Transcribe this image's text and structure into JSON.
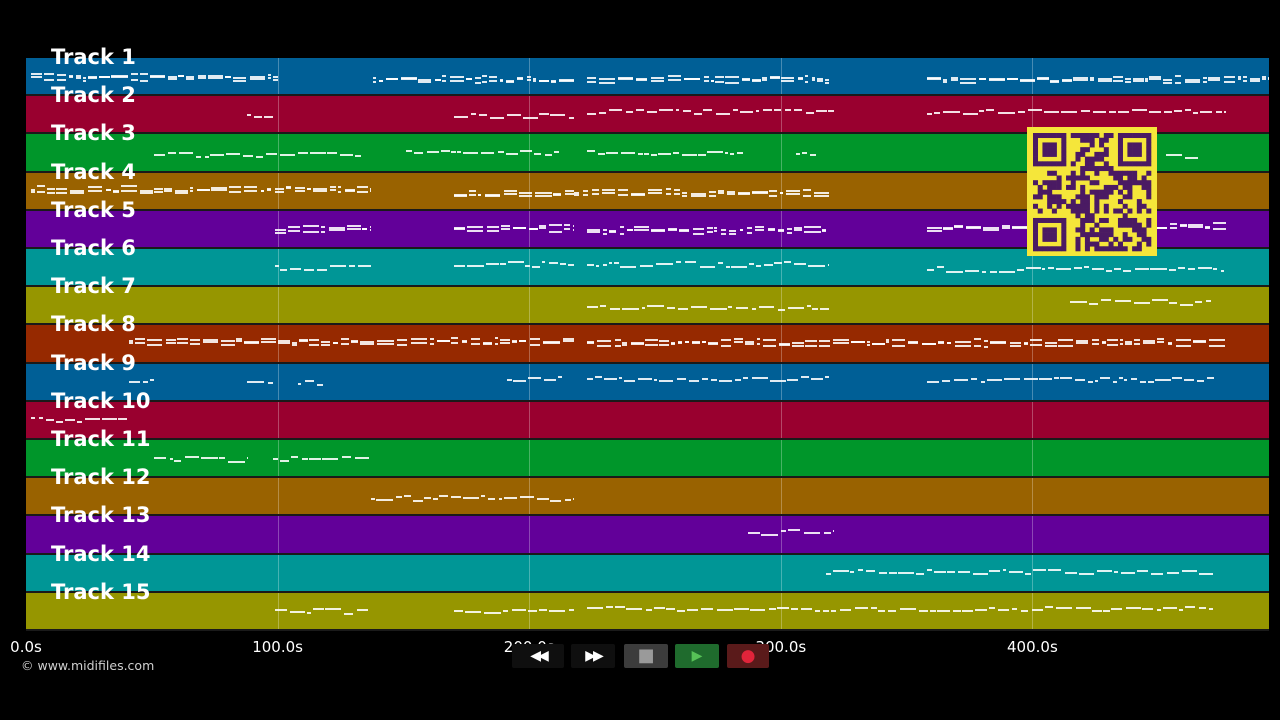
{
  "app": {
    "copyright": "© www.midifiles.com"
  },
  "timeline": {
    "max_seconds": 500,
    "ticks": [
      {
        "value": 0,
        "label": "0.0s"
      },
      {
        "value": 100,
        "label": "100.0s"
      },
      {
        "value": 200,
        "label": "200.0s"
      },
      {
        "value": 300,
        "label": "300.0s"
      },
      {
        "value": 400,
        "label": "400.0s"
      }
    ]
  },
  "tracks": [
    {
      "label": "Track 1",
      "color": "#005f96",
      "segments": [
        [
          2,
          100
        ],
        [
          138,
          218
        ],
        [
          223,
          319
        ],
        [
          358,
          495
        ]
      ]
    },
    {
      "label": "Track 2",
      "color": "#99002f",
      "segments": [
        [
          88,
          98
        ],
        [
          170,
          218
        ],
        [
          223,
          321
        ],
        [
          358,
          477
        ]
      ]
    },
    {
      "label": "Track 3",
      "color": "#00962a",
      "segments": [
        [
          51,
          133
        ],
        [
          151,
          212
        ],
        [
          223,
          285
        ],
        [
          306,
          314
        ],
        [
          453,
          466
        ]
      ]
    },
    {
      "label": "Track 4",
      "color": "#996200",
      "segments": [
        [
          2,
          98
        ],
        [
          99,
          137
        ],
        [
          170,
          218
        ],
        [
          218,
          319
        ]
      ]
    },
    {
      "label": "Track 5",
      "color": "#620099",
      "segments": [
        [
          99,
          137
        ],
        [
          170,
          218
        ],
        [
          223,
          319
        ],
        [
          358,
          477
        ]
      ]
    },
    {
      "label": "Track 6",
      "color": "#009696",
      "segments": [
        [
          99,
          137
        ],
        [
          170,
          218
        ],
        [
          223,
          319
        ],
        [
          358,
          476
        ]
      ]
    },
    {
      "label": "Track 7",
      "color": "#969600",
      "segments": [
        [
          223,
          319
        ],
        [
          415,
          471
        ]
      ]
    },
    {
      "label": "Track 8",
      "color": "#962900",
      "segments": [
        [
          41,
          218
        ],
        [
          223,
          477
        ]
      ]
    },
    {
      "label": "Track 9",
      "color": "#005f96",
      "segments": [
        [
          41,
          51
        ],
        [
          88,
          98
        ],
        [
          108,
          118
        ],
        [
          191,
          213
        ],
        [
          223,
          319
        ],
        [
          358,
          472
        ]
      ]
    },
    {
      "label": "Track 10",
      "color": "#99002f",
      "segments": [
        [
          2,
          40
        ]
      ]
    },
    {
      "label": "Track 11",
      "color": "#00962a",
      "segments": [
        [
          51,
          88
        ],
        [
          98,
          137
        ]
      ]
    },
    {
      "label": "Track 12",
      "color": "#996200",
      "segments": [
        [
          137,
          218
        ]
      ]
    },
    {
      "label": "Track 13",
      "color": "#620099",
      "segments": [
        [
          287,
          321
        ]
      ]
    },
    {
      "label": "Track 14",
      "color": "#009696",
      "segments": [
        [
          318,
          472
        ]
      ]
    },
    {
      "label": "Track 15",
      "color": "#969600",
      "segments": [
        [
          99,
          137
        ],
        [
          170,
          218
        ],
        [
          223,
          472
        ]
      ]
    }
  ],
  "transport": {
    "buttons": [
      {
        "name": "rewind-button",
        "icon": "rewind-icon",
        "glyph": "◀◀",
        "bg": "#0f0f0f",
        "fg": "#ffffff"
      },
      {
        "name": "fast-forward-button",
        "icon": "fast-forward-icon",
        "glyph": "▶▶",
        "bg": "#0f0f0f",
        "fg": "#ffffff"
      },
      {
        "name": "stop-button",
        "icon": "stop-icon",
        "glyph": "■",
        "bg": "#3c3c3c",
        "fg": "#9a9a9a"
      },
      {
        "name": "play-button",
        "icon": "play-icon",
        "glyph": "▶",
        "bg": "#1f6b2d",
        "fg": "#57c257"
      },
      {
        "name": "record-button",
        "icon": "record-icon",
        "glyph": "●",
        "bg": "#5a1a1a",
        "fg": "#e0243a"
      }
    ]
  },
  "qr": {
    "colors": {
      "fg": "#4a1a63",
      "bg": "#f5e63a"
    }
  }
}
